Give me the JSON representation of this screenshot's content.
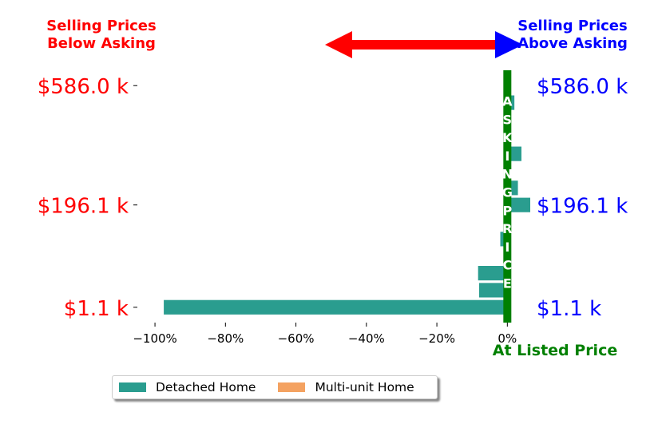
{
  "chart_data": {
    "type": "bar",
    "orientation": "horizontal",
    "annotations": {
      "left_title": [
        "Selling Prices",
        "Below Asking"
      ],
      "right_title": [
        "Selling Prices",
        "Above Asking"
      ],
      "at_listed": "At Listed Price",
      "asking_letters": [
        "A",
        "S",
        "K",
        "I",
        "N",
        "G",
        "P",
        "R",
        "I",
        "C",
        "E"
      ]
    },
    "colors": {
      "below": "#ff0000",
      "above": "#0000ff",
      "asking": "#008000",
      "detached": "#2a9d8f",
      "multi": "#f4a261"
    },
    "xlim": [
      -105,
      6.5
    ],
    "xticks": [
      -100,
      -80,
      -60,
      -40,
      -20,
      0
    ],
    "xtick_labels": [
      "−100%",
      "−80%",
      "−60%",
      "−40%",
      "−20%",
      "0%"
    ],
    "y_labels": [
      "$586.0 k",
      "$196.1 k",
      "$1.1 k"
    ],
    "y_label_rank": [
      13,
      6,
      0
    ],
    "rank_range": [
      -0.9,
      13.9
    ],
    "series": [
      {
        "name": "Detached Home",
        "color": "#2a9d8f",
        "ranks": [
          0,
          1,
          2,
          4,
          6,
          7,
          9,
          12
        ],
        "values": [
          -97.5,
          -8,
          -8.3,
          -2,
          6.5,
          3,
          4,
          2
        ]
      },
      {
        "name": "Multi-unit Home",
        "color": "#f4a261",
        "ranks": [],
        "values": []
      }
    ],
    "legend": {
      "placement": "bottom-center",
      "items": [
        "Detached Home",
        "Multi-unit Home"
      ]
    },
    "grid": false
  }
}
